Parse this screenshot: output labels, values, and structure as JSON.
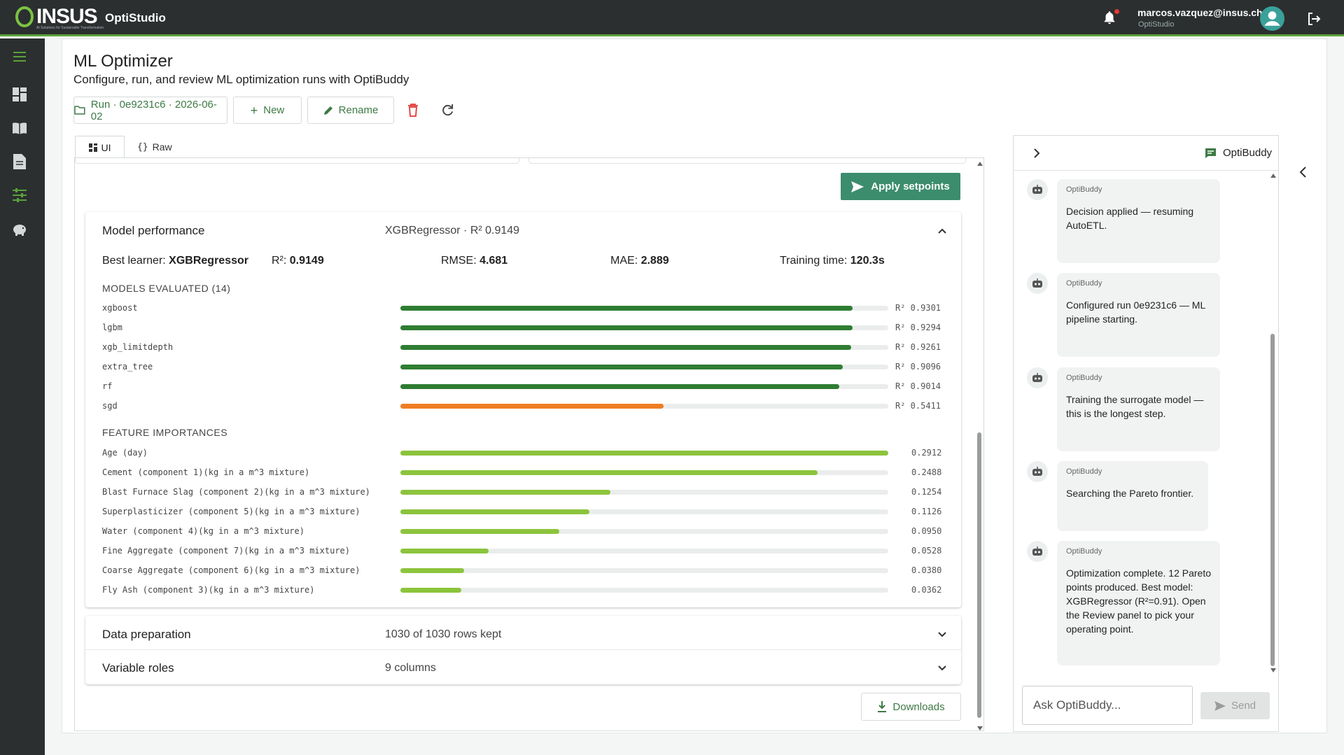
{
  "topbar": {
    "logo_text": "INSUS",
    "logo_tagline": "AI Solutions for Sustainable Transformation",
    "app_name": "OptiStudio",
    "user_email": "marcos.vazquez@insus.ch",
    "user_app": "OptiStudio"
  },
  "page": {
    "title": "ML Optimizer",
    "subtitle": "Configure, run, and review ML optimization runs with OptiBuddy"
  },
  "toolbar": {
    "run_label": "Run · 0e9231c6 · 2026-06-02",
    "new_label": "New",
    "rename_label": "Rename"
  },
  "tabs": [
    {
      "label": "UI",
      "active": true
    },
    {
      "label": "Raw",
      "active": false
    }
  ],
  "apply_label": "Apply setpoints",
  "performance": {
    "title": "Model performance",
    "summary": "XGBRegressor · R² 0.9149",
    "best_learner_label": "Best learner:",
    "best_learner": "XGBRegressor",
    "r2_label": "R²:",
    "r2": "0.9149",
    "rmse_label": "RMSE:",
    "rmse": "4.681",
    "mae_label": "MAE:",
    "mae": "2.889",
    "time_label": "Training time:",
    "time": "120.3s",
    "models_heading": "MODELS EVALUATED (14)",
    "models": [
      {
        "name": "xgboost",
        "value": "R² 0.9301",
        "score": 0.9301,
        "color": "#2e7d32"
      },
      {
        "name": "lgbm",
        "value": "R² 0.9294",
        "score": 0.9294,
        "color": "#2e7d32"
      },
      {
        "name": "xgb_limitdepth",
        "value": "R² 0.9261",
        "score": 0.9261,
        "color": "#2e7d32"
      },
      {
        "name": "extra_tree",
        "value": "R² 0.9096",
        "score": 0.9096,
        "color": "#2e7d32"
      },
      {
        "name": "rf",
        "value": "R² 0.9014",
        "score": 0.9014,
        "color": "#2e7d32"
      },
      {
        "name": "sgd",
        "value": "R² 0.5411",
        "score": 0.5411,
        "color": "#ef7d22"
      }
    ],
    "features_heading": "FEATURE IMPORTANCES",
    "features": [
      {
        "name": "Age (day)",
        "value": "0.2912",
        "score": 0.2912
      },
      {
        "name": "Cement (component 1)(kg in a m^3 mixture)",
        "value": "0.2488",
        "score": 0.2488
      },
      {
        "name": "Blast Furnace Slag (component 2)(kg in a m^3 mixture)",
        "value": "0.1254",
        "score": 0.1254
      },
      {
        "name": "Superplasticizer (component 5)(kg in a m^3 mixture)",
        "value": "0.1126",
        "score": 0.1126
      },
      {
        "name": "Water (component 4)(kg in a m^3 mixture)",
        "value": "0.0950",
        "score": 0.095
      },
      {
        "name": "Fine Aggregate (component 7)(kg in a m^3 mixture)",
        "value": "0.0528",
        "score": 0.0528
      },
      {
        "name": "Coarse Aggregate (component 6)(kg in a m^3 mixture)",
        "value": "0.0380",
        "score": 0.038
      },
      {
        "name": "Fly Ash (component 3)(kg in a m^3 mixture)",
        "value": "0.0362",
        "score": 0.0362
      }
    ],
    "feature_color": "#8cc43c"
  },
  "data_prep": {
    "title": "Data preparation",
    "summary": "1030 of 1030 rows kept"
  },
  "variable_roles": {
    "title": "Variable roles",
    "summary": "9 columns"
  },
  "downloads_label": "Downloads",
  "chat": {
    "title": "OptiBuddy",
    "messages": [
      {
        "who": "OptiBuddy",
        "text": "Decision applied — resuming AutoETL."
      },
      {
        "who": "OptiBuddy",
        "text": "Configured run 0e9231c6 — ML pipeline starting."
      },
      {
        "who": "OptiBuddy",
        "text": "Training the surrogate model — this is the longest step."
      },
      {
        "who": "OptiBuddy",
        "text": "Searching the Pareto frontier."
      },
      {
        "who": "OptiBuddy",
        "text": "Optimization complete. 12 Pareto points produced. Best model: XGBRegressor (R²=0.91). Open the Review panel to pick your operating point."
      }
    ],
    "input_placeholder": "Ask OptiBuddy...",
    "send_label": "Send"
  },
  "colors": {
    "accent": "#3d7a45",
    "primary_btn": "#3b8d6d",
    "topbar": "#2b2f30",
    "brand_green": "#7cc243"
  }
}
